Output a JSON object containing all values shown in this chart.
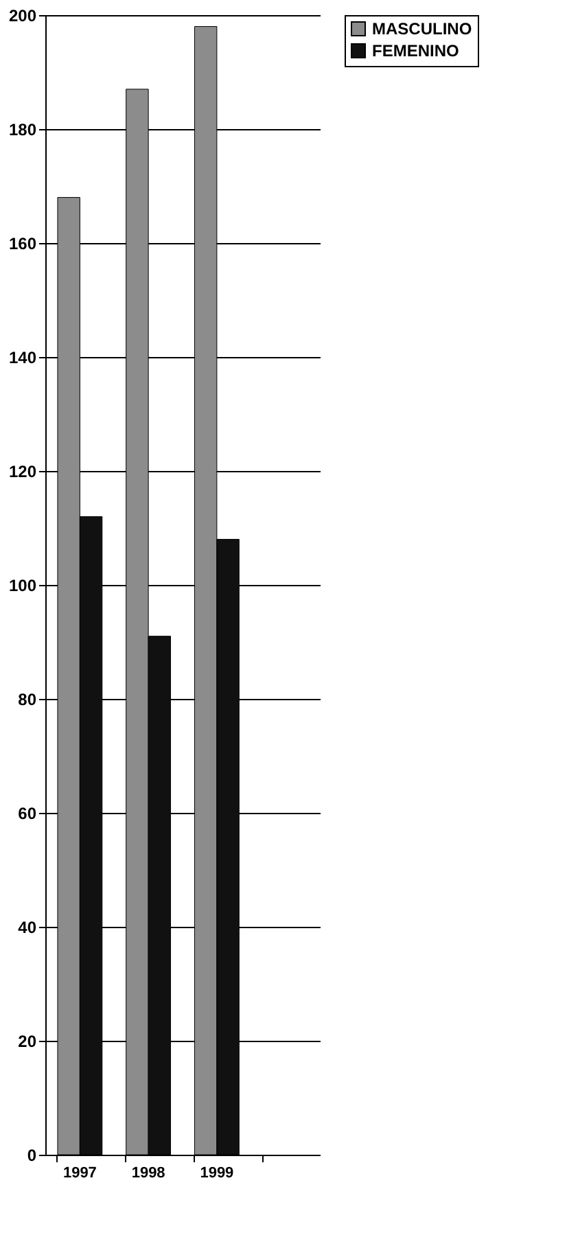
{
  "chart_data": {
    "type": "bar",
    "categories": [
      "1997",
      "1998",
      "1999",
      null
    ],
    "series": [
      {
        "name": "MASCULINO",
        "color": "#8c8c8c",
        "values": [
          168,
          187,
          198,
          null
        ]
      },
      {
        "name": "FEMENINO",
        "color": "#111111",
        "values": [
          112,
          91,
          108,
          null
        ]
      }
    ],
    "ylim": [
      0,
      200
    ],
    "yticks": [
      0,
      20,
      40,
      60,
      80,
      100,
      120,
      140,
      160,
      180,
      200
    ],
    "grid": "y",
    "legend": "right"
  }
}
